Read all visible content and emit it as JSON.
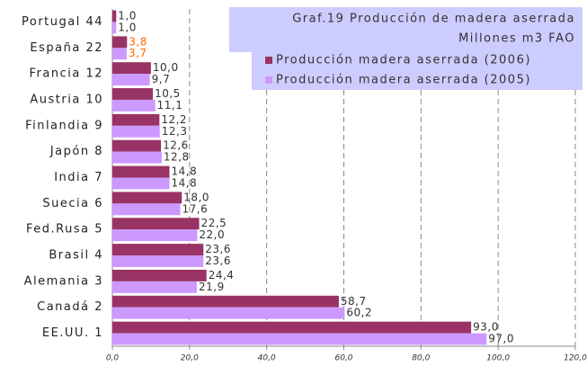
{
  "chart_data": {
    "type": "hbar",
    "title": "Graf.19 Producción de madera aserrada",
    "subtitle": "Millones m3 FAO",
    "categories": [
      "Portugal 44",
      "España 22",
      "Francia 12",
      "Austria 10",
      "Finlandia 9",
      "Japón 8",
      "India 7",
      "Suecia 6",
      "Fed.Rusa 5",
      "Brasil 4",
      "Alemania 3",
      "Canadá 2",
      "EE.UU. 1"
    ],
    "series": [
      {
        "name": "Producción madera aserrada (2006)",
        "color": "#993366",
        "values": [
          1.0,
          3.8,
          10.0,
          10.5,
          12.2,
          12.6,
          14.8,
          18.0,
          22.5,
          23.6,
          24.4,
          58.7,
          93.0
        ],
        "value_labels": [
          "1,0",
          "3,8",
          "10,0",
          "10,5",
          "12,2",
          "12,6",
          "14,8",
          "18,0",
          "22,5",
          "23,6",
          "24,4",
          "58,7",
          "93,0"
        ],
        "label_colors": [
          "#333333",
          "#ff6600",
          "#333333",
          "#333333",
          "#333333",
          "#333333",
          "#333333",
          "#333333",
          "#333333",
          "#333333",
          "#333333",
          "#333333",
          "#333333"
        ]
      },
      {
        "name": "Producción madera aserrada (2005)",
        "color": "#cc99ff",
        "values": [
          1.0,
          3.7,
          9.7,
          11.1,
          12.3,
          12.8,
          14.8,
          17.6,
          22.0,
          23.6,
          21.9,
          60.2,
          97.0
        ],
        "value_labels": [
          "1,0",
          "3,7",
          "9,7",
          "11,1",
          "12,3",
          "12,8",
          "14,8",
          "17,6",
          "22,0",
          "23,6",
          "21,9",
          "60,2",
          "97,0"
        ],
        "label_colors": [
          "#333333",
          "#ff6600",
          "#333333",
          "#333333",
          "#333333",
          "#333333",
          "#333333",
          "#333333",
          "#333333",
          "#333333",
          "#333333",
          "#333333",
          "#333333"
        ]
      }
    ],
    "xlim": [
      0,
      120
    ],
    "xticks": [
      {
        "value": 0,
        "label": "0,0"
      },
      {
        "value": 20,
        "label": "20,0"
      },
      {
        "value": 40,
        "label": "40,0"
      },
      {
        "value": 60,
        "label": "60,0"
      },
      {
        "value": 80,
        "label": "80,0"
      },
      {
        "value": 100,
        "label": "100,0"
      },
      {
        "value": 120,
        "label": "120,0"
      }
    ],
    "grid": true
  }
}
